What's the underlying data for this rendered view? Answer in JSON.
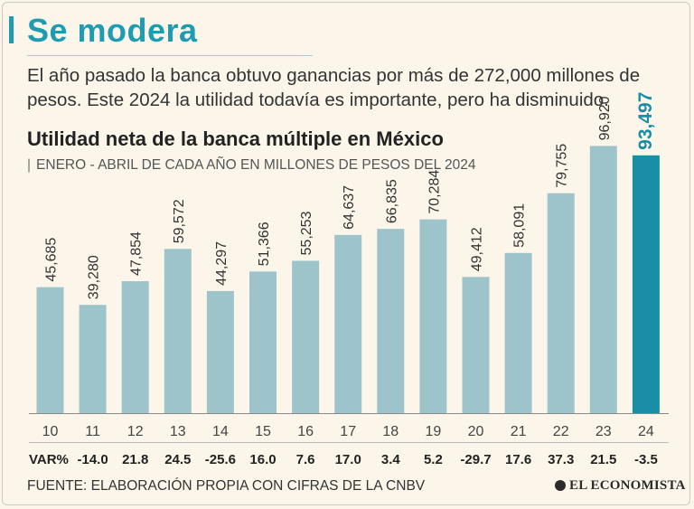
{
  "headline": "Se modera",
  "lede": "El año pasado la banca obtuvo ganancias por más de 272,000 millones de pesos. Este 2024 la utilidad todavía es importante, pero ha disminuido.",
  "source": "FUENTE: ELABORACIÓN PROPIA CON CIFRAS DE LA CNBV",
  "brand": "EL ECONOMISTA",
  "colors": {
    "bar": "#9ec4cb",
    "highlight": "#1a8ea4",
    "accent": "#1f9bb2",
    "background": "#fbf6e9"
  },
  "chart_data": {
    "type": "bar",
    "title": "Utilidad neta de la banca múltiple en México",
    "subtitle_separator": "|",
    "subtitle": "ENERO - ABRIL DE CADA AÑO EN MILLONES DE PESOS DEL 2024",
    "xlabel": "",
    "ylabel": "",
    "ylim": [
      0,
      100000
    ],
    "categories": [
      "10",
      "11",
      "12",
      "13",
      "14",
      "15",
      "16",
      "17",
      "18",
      "19",
      "20",
      "21",
      "22",
      "23",
      "24"
    ],
    "values": [
      45685,
      39280,
      47854,
      59572,
      44297,
      51366,
      55253,
      64637,
      66835,
      70284,
      49412,
      58091,
      79755,
      96920,
      93497
    ],
    "value_labels": [
      "45,685",
      "39,280",
      "47,854",
      "59,572",
      "44,297",
      "51,366",
      "55,253",
      "64,637",
      "66,835",
      "70,284",
      "49,412",
      "58,091",
      "79,755",
      "96,920",
      "93,497"
    ],
    "highlight_index": 14,
    "var_label": "VAR%",
    "var_values": [
      "-14.0",
      "21.8",
      "24.5",
      "-25.6",
      "16.0",
      "7.6",
      "17.0",
      "3.4",
      "5.2",
      "-29.7",
      "17.6",
      "37.3",
      "21.5",
      "-3.5"
    ]
  }
}
